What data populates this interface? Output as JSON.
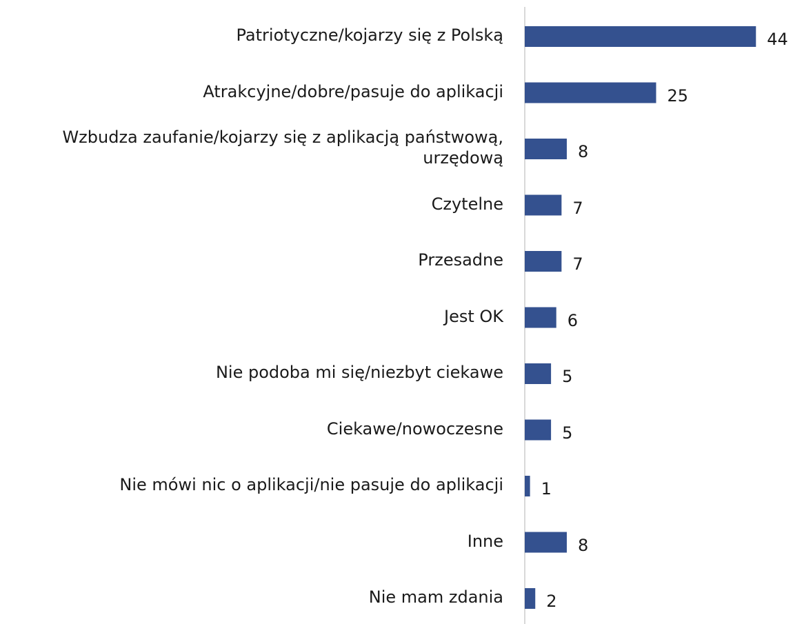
{
  "chart_data": {
    "type": "bar",
    "orientation": "horizontal",
    "categories": [
      "Patriotyczne/kojarzy się z Polską",
      "Atrakcyjne/dobre/pasuje do aplikacji",
      "Wzbudza zaufanie/kojarzy się z aplikacją państwową, urzędową",
      "Czytelne",
      "Przesadne",
      "Jest OK",
      "Nie podoba mi się/niezbyt ciekawe",
      "Ciekawe/nowoczesne",
      "Nie mówi nic o aplikacji/nie pasuje do aplikacji",
      "Inne",
      "Nie mam zdania"
    ],
    "values": [
      44,
      25,
      8,
      7,
      7,
      6,
      5,
      5,
      1,
      8,
      2
    ],
    "color": "#34518f",
    "xlim": [
      0,
      50
    ]
  }
}
